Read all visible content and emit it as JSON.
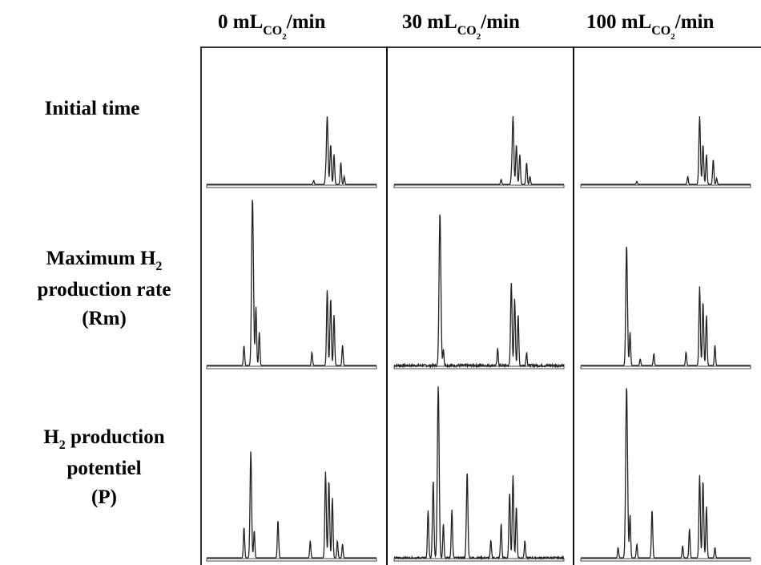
{
  "columns": [
    {
      "pre": "0 mL",
      "sub": "CO",
      "sub2": "2",
      "post": "/min"
    },
    {
      "pre": "30 mL",
      "sub": "CO",
      "sub2": "2",
      "post": "/min"
    },
    {
      "pre": "100 mL",
      "sub": "CO",
      "sub2": "2",
      "post": "/min"
    }
  ],
  "rows": [
    {
      "lines": [
        {
          "text": "Initial  time"
        }
      ]
    },
    {
      "lines": [
        {
          "text": "Maximum H",
          "sub": "2"
        },
        {
          "text": "production rate"
        },
        {
          "text": "(Rm)"
        }
      ]
    },
    {
      "lines": [
        {
          "text": "H",
          "sub": "2",
          "after": " production"
        },
        {
          "text": "potentiel"
        },
        {
          "text": "(P)"
        }
      ]
    }
  ],
  "chart_data": {
    "type": "line",
    "description_units": "relative retention position (0-1) vs relative peak height (0-1)",
    "panels": [
      [
        {
          "noise": 0.0,
          "peaks": [
            [
              0.63,
              0.04
            ],
            [
              0.7,
              0.07
            ],
            [
              0.71,
              0.68
            ],
            [
              0.73,
              0.4
            ],
            [
              0.75,
              0.3
            ],
            [
              0.79,
              0.22
            ],
            [
              0.81,
              0.08
            ]
          ]
        },
        {
          "noise": 0.0,
          "peaks": [
            [
              0.63,
              0.05
            ],
            [
              0.69,
              0.06
            ],
            [
              0.7,
              0.68
            ],
            [
              0.72,
              0.4
            ],
            [
              0.74,
              0.3
            ],
            [
              0.78,
              0.22
            ],
            [
              0.8,
              0.08
            ]
          ]
        },
        {
          "noise": 0.0,
          "peaks": [
            [
              0.33,
              0.03
            ],
            [
              0.63,
              0.08
            ],
            [
              0.7,
              0.68
            ],
            [
              0.72,
              0.4
            ],
            [
              0.74,
              0.3
            ],
            [
              0.78,
              0.25
            ],
            [
              0.8,
              0.06
            ]
          ]
        }
      ],
      [
        {
          "noise": 0.0,
          "peaks": [
            [
              0.22,
              0.12
            ],
            [
              0.27,
              1.0
            ],
            [
              0.29,
              0.35
            ],
            [
              0.31,
              0.2
            ],
            [
              0.62,
              0.08
            ],
            [
              0.71,
              0.45
            ],
            [
              0.73,
              0.4
            ],
            [
              0.75,
              0.3
            ],
            [
              0.8,
              0.12
            ]
          ]
        },
        {
          "noise": 0.015,
          "peaks": [
            [
              0.27,
              0.92
            ],
            [
              0.29,
              0.1
            ],
            [
              0.61,
              0.1
            ],
            [
              0.69,
              0.5
            ],
            [
              0.71,
              0.4
            ],
            [
              0.73,
              0.3
            ],
            [
              0.78,
              0.08
            ]
          ]
        },
        {
          "noise": 0.0,
          "peaks": [
            [
              0.27,
              0.72
            ],
            [
              0.29,
              0.2
            ],
            [
              0.35,
              0.04
            ],
            [
              0.43,
              0.07
            ],
            [
              0.62,
              0.08
            ],
            [
              0.7,
              0.47
            ],
            [
              0.72,
              0.38
            ],
            [
              0.74,
              0.3
            ],
            [
              0.79,
              0.12
            ]
          ]
        }
      ],
      [
        {
          "noise": 0.0,
          "peaks": [
            [
              0.22,
              0.18
            ],
            [
              0.26,
              0.62
            ],
            [
              0.28,
              0.16
            ],
            [
              0.42,
              0.22
            ],
            [
              0.61,
              0.1
            ],
            [
              0.7,
              0.5
            ],
            [
              0.72,
              0.45
            ],
            [
              0.74,
              0.35
            ],
            [
              0.77,
              0.1
            ],
            [
              0.8,
              0.08
            ]
          ]
        },
        {
          "noise": 0.01,
          "peaks": [
            [
              0.2,
              0.28
            ],
            [
              0.23,
              0.45
            ],
            [
              0.26,
              1.0
            ],
            [
              0.29,
              0.2
            ],
            [
              0.34,
              0.28
            ],
            [
              0.43,
              0.5
            ],
            [
              0.57,
              0.1
            ],
            [
              0.63,
              0.2
            ],
            [
              0.68,
              0.38
            ],
            [
              0.7,
              0.48
            ],
            [
              0.72,
              0.3
            ],
            [
              0.77,
              0.1
            ]
          ]
        },
        {
          "noise": 0.0,
          "peaks": [
            [
              0.22,
              0.06
            ],
            [
              0.27,
              1.0
            ],
            [
              0.29,
              0.25
            ],
            [
              0.33,
              0.08
            ],
            [
              0.42,
              0.28
            ],
            [
              0.6,
              0.07
            ],
            [
              0.64,
              0.17
            ],
            [
              0.7,
              0.48
            ],
            [
              0.72,
              0.45
            ],
            [
              0.74,
              0.3
            ],
            [
              0.79,
              0.06
            ]
          ]
        }
      ]
    ]
  }
}
